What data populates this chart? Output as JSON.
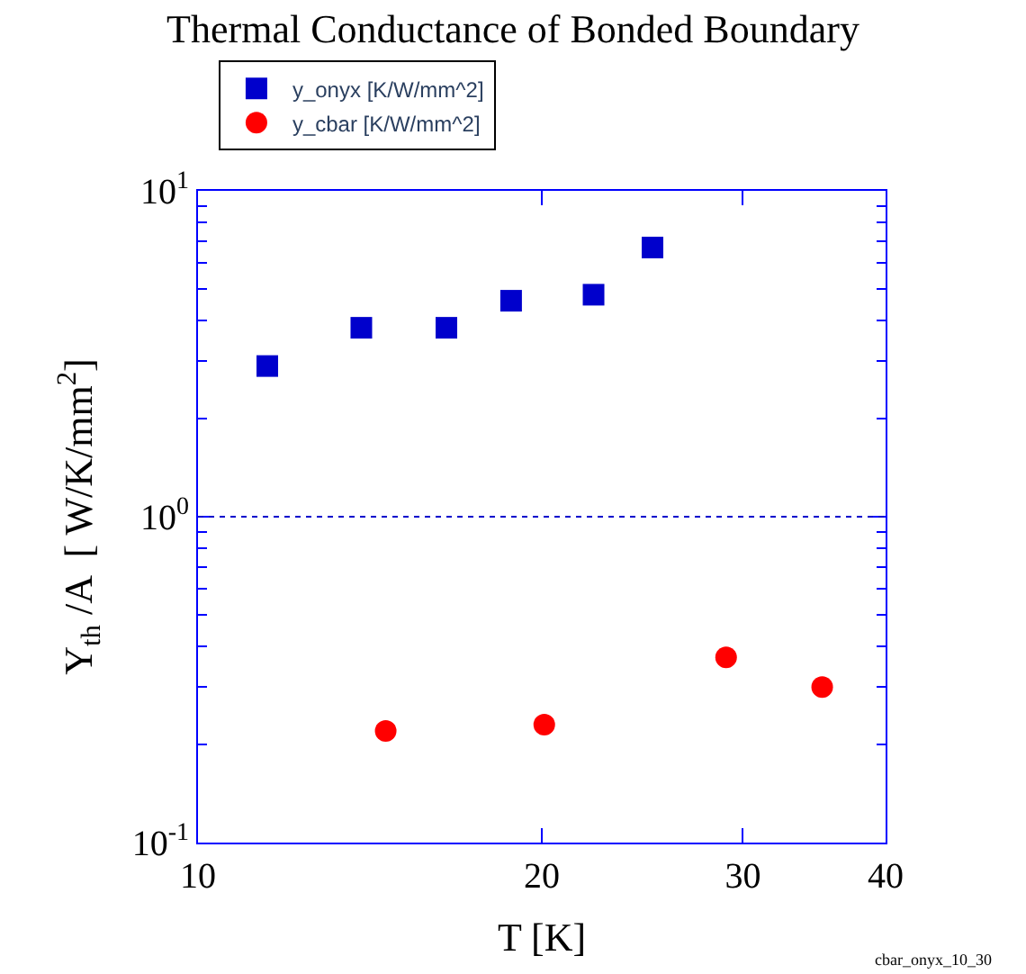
{
  "chart_data": {
    "type": "scatter",
    "title": "Thermal Conductance of Bonded Boundary",
    "xlabel": "T [K]",
    "ylabel": "Y$_{th}$ /A  [ W/K/mm$^{2}$]",
    "series": [
      {
        "name": "y_onyx [K/W/mm^2]",
        "color": "#0000cc",
        "marker": "square",
        "x": [
          11.5,
          13.9,
          16.5,
          18.8,
          22.2,
          25.0
        ],
        "values": [
          2.9,
          3.8,
          3.8,
          4.6,
          4.8,
          6.7
        ]
      },
      {
        "name": "y_cbar [K/W/mm^2]",
        "color": "#ff0000",
        "marker": "circle",
        "x": [
          14.6,
          20.1,
          29.0,
          35.2
        ],
        "values": [
          0.22,
          0.23,
          0.37,
          0.3
        ]
      }
    ],
    "log": "xy",
    "xlim": [
      10,
      40
    ],
    "xticks": [
      10,
      20,
      30,
      40
    ],
    "ylim": [
      0.1,
      10
    ],
    "yticks": [
      {
        "value": 10,
        "label": "10$^{1}$"
      },
      {
        "value": 1,
        "label": "10$^{0}$"
      },
      {
        "value": 0.1,
        "label": "10$^{-1}$"
      }
    ],
    "ref_lines": [
      {
        "axis": "y",
        "value": 1,
        "color": "#0000cc",
        "line_style": "dotted"
      }
    ],
    "legend": "top left",
    "annotations": [
      "cbar_onyx_10_30"
    ]
  }
}
